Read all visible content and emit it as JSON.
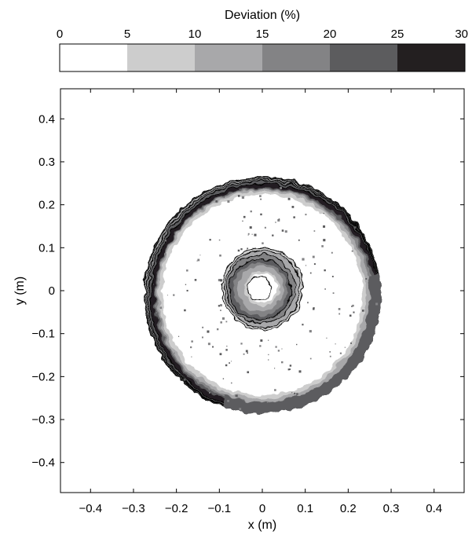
{
  "chart_data": {
    "type": "contour",
    "colorbar": {
      "title": "Deviation (%)",
      "ticks": [
        "0",
        "5",
        "10",
        "15",
        "20",
        "25",
        "30"
      ],
      "levels": [
        0,
        5,
        10,
        15,
        20,
        25,
        30
      ],
      "colors": [
        "#ffffff",
        "#cdcdcd",
        "#a8a8aa",
        "#838385",
        "#5c5c5e",
        "#231f20"
      ]
    },
    "xlabel": "x (m)",
    "ylabel": "y (m)",
    "xlim": [
      -0.47,
      0.47
    ],
    "ylim": [
      -0.47,
      0.47
    ],
    "xticks": [
      -0.4,
      -0.3,
      -0.2,
      -0.1,
      0,
      0.1,
      0.2,
      0.3,
      0.4
    ],
    "xtick_labels": [
      "−0.4",
      "−0.3",
      "−0.2",
      "−0.1",
      "0",
      "0.1",
      "0.2",
      "0.3",
      "0.4"
    ],
    "yticks": [
      0.4,
      0.3,
      0.2,
      0.1,
      0,
      -0.1,
      -0.2,
      -0.3,
      -0.4
    ],
    "ytick_labels": [
      "0.4",
      "0.3",
      "0.2",
      "0.1",
      "0",
      "−0.1",
      "−0.2",
      "−0.3",
      "−0.4"
    ],
    "structures": {
      "center": [
        0.0,
        0.0
      ],
      "outer_ring": {
        "center": [
          0.0,
          -0.01
        ],
        "inner_radius": 0.245,
        "outer_radius": 0.275
      },
      "inner_ring": {
        "center": [
          0.0,
          0.005
        ],
        "inner_radius": 0.035,
        "outer_radius": 0.095
      }
    }
  }
}
